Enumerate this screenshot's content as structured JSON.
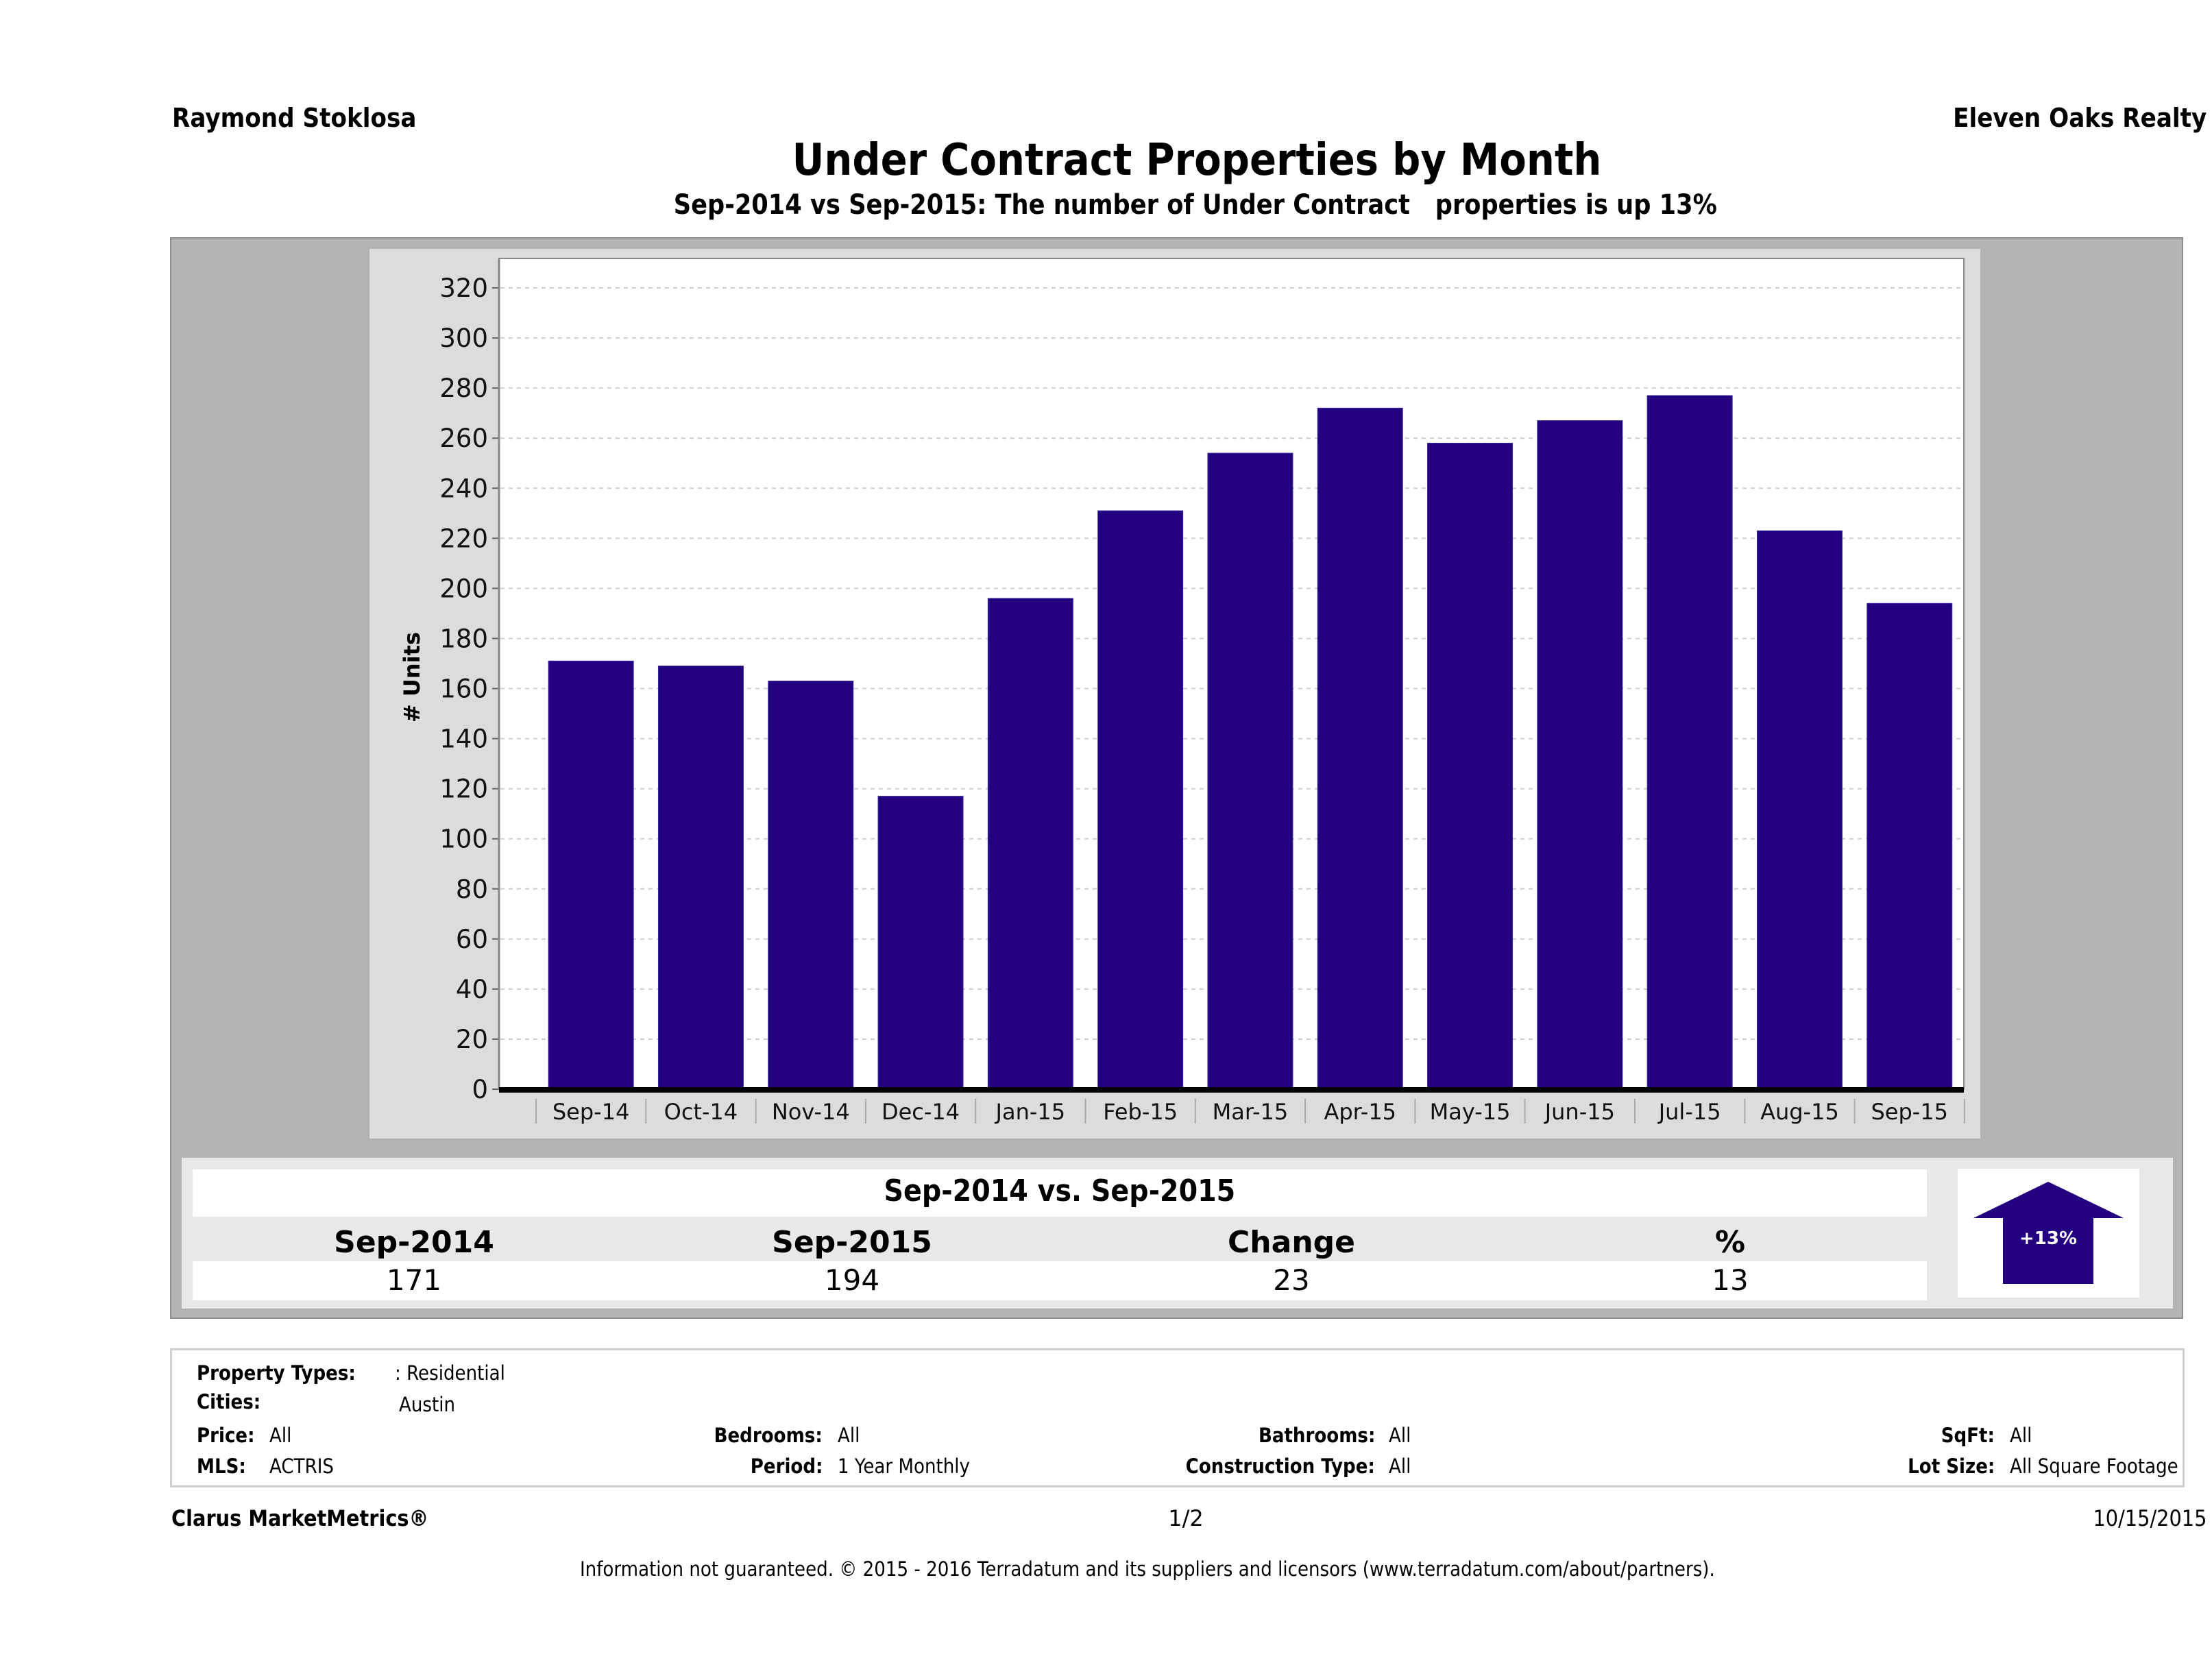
{
  "header": {
    "agent_name": "Raymond Stoklosa",
    "brokerage": "Eleven Oaks Realty",
    "title": "Under Contract Properties by Month",
    "subtitle": "Sep-2014 vs Sep-2015: The number of Under Contract   properties is up 13%"
  },
  "colors": {
    "bar": "#22007f",
    "panel_gray": "#b3b3b3",
    "chart_bg": "#dcdcdc",
    "table_bg": "#e8e8e8"
  },
  "chart_data": {
    "type": "bar",
    "title": "Under Contract Properties by Month",
    "xlabel": "",
    "ylabel": "# Units",
    "ylim": [
      0,
      320
    ],
    "yticks": [
      0,
      20,
      40,
      60,
      80,
      100,
      120,
      140,
      160,
      180,
      200,
      220,
      240,
      260,
      280,
      300,
      320
    ],
    "grid": true,
    "categories": [
      "Sep-14",
      "Oct-14",
      "Nov-14",
      "Dec-14",
      "Jan-15",
      "Feb-15",
      "Mar-15",
      "Apr-15",
      "May-15",
      "Jun-15",
      "Jul-15",
      "Aug-15",
      "Sep-15"
    ],
    "values": [
      171,
      169,
      163,
      117,
      196,
      231,
      254,
      272,
      258,
      267,
      277,
      223,
      194
    ]
  },
  "summary": {
    "title": "Sep-2014 vs. Sep-2015",
    "columns": [
      "Sep-2014",
      "Sep-2015",
      "Change",
      "%"
    ],
    "values": [
      "171",
      "194",
      "23",
      "13"
    ],
    "badge": "+13%",
    "direction": "up-arrow-icon"
  },
  "details": {
    "property_types": {
      "label": "Property Types:",
      "value": ": Residential"
    },
    "cities": {
      "label": "Cities:",
      "value": "Austin"
    },
    "price": {
      "label": "Price:",
      "value": "All"
    },
    "mls": {
      "label": "MLS:",
      "value": "ACTRIS"
    },
    "bedrooms": {
      "label": "Bedrooms:",
      "value": "All"
    },
    "period": {
      "label": "Period:",
      "value": "1 Year Monthly"
    },
    "bathrooms": {
      "label": "Bathrooms:",
      "value": "All"
    },
    "construction_type": {
      "label": "Construction Type:",
      "value": "All"
    },
    "sqft": {
      "label": "SqFt:",
      "value": "All"
    },
    "lot_size": {
      "label": "Lot Size:",
      "value": "All Square Footage"
    }
  },
  "footer": {
    "brand": "Clarus MarketMetrics®",
    "page": "1/2",
    "date": "10/15/2015",
    "disclaimer": "Information not guaranteed. © 2015 - 2016 Terradatum and its suppliers and licensors (www.terradatum.com/about/partners)."
  }
}
